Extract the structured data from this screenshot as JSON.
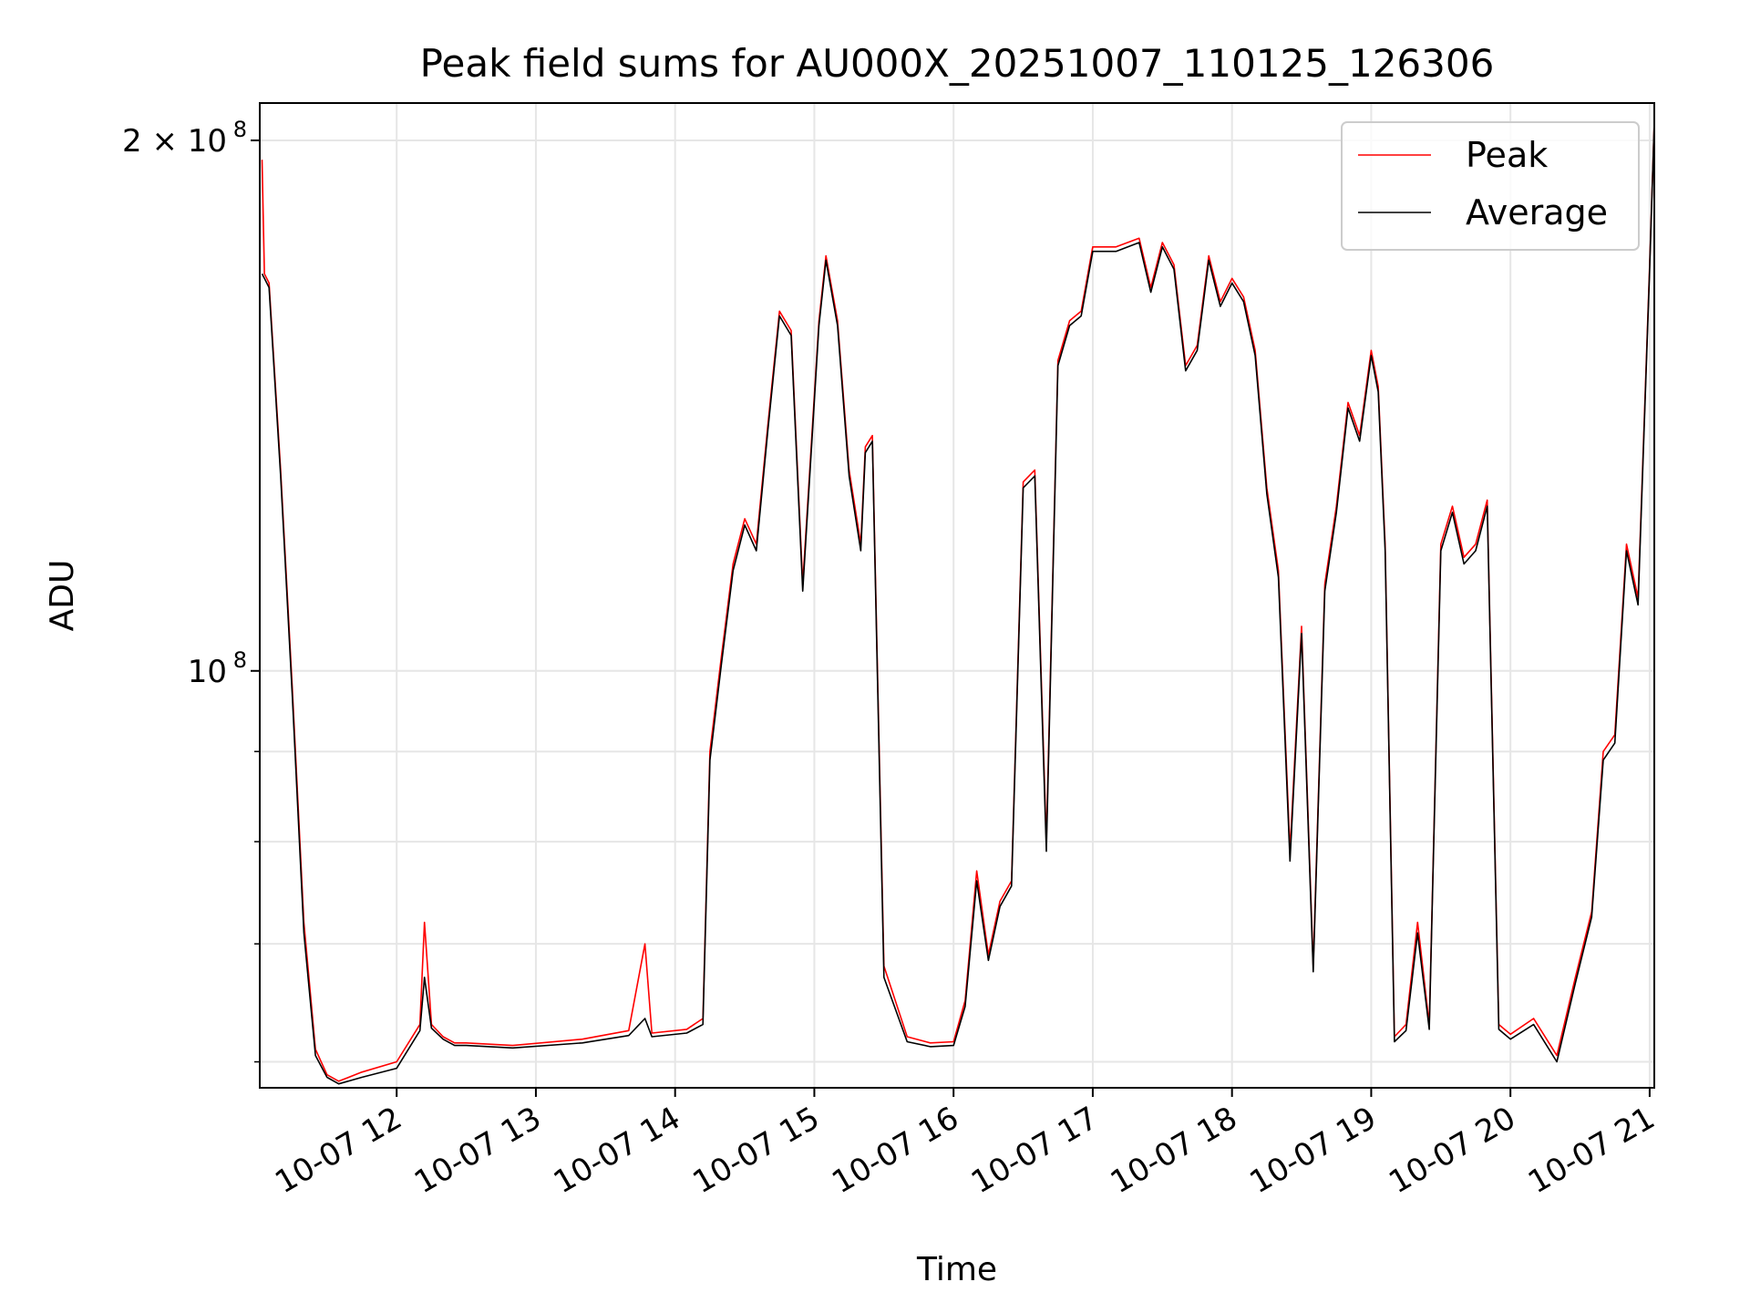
{
  "chart_data": {
    "type": "line",
    "title": "Peak field sums for AU000X_20251007_110125_126306",
    "xlabel": "Time",
    "ylabel": "ADU",
    "yscale": "log",
    "ylim": [
      58000000,
      210000000
    ],
    "xlim": [
      "2025-10-07 11:01",
      "2025-10-07 21:02"
    ],
    "x_ticks": [
      "10-07 12",
      "10-07 13",
      "10-07 14",
      "10-07 15",
      "10-07 16",
      "10-07 17",
      "10-07 18",
      "10-07 19",
      "10-07 20",
      "10-07 21"
    ],
    "y_ticks": [
      {
        "value": 200000000,
        "label": "2 × 10",
        "exp": "8"
      },
      {
        "value": 100000000,
        "label": "10",
        "exp": "8"
      }
    ],
    "y_minor_ticks": [
      60000000,
      70000000,
      80000000,
      90000000
    ],
    "grid": true,
    "legend_position": "top-right",
    "series": [
      {
        "name": "Peak",
        "color": "#ff0000",
        "x": [
          "2025-10-07 11:02",
          "2025-10-07 11:03",
          "2025-10-07 11:05",
          "2025-10-07 11:10",
          "2025-10-07 11:15",
          "2025-10-07 11:20",
          "2025-10-07 11:25",
          "2025-10-07 11:30",
          "2025-10-07 11:35",
          "2025-10-07 11:45",
          "2025-10-07 12:00",
          "2025-10-07 12:10",
          "2025-10-07 12:12",
          "2025-10-07 12:15",
          "2025-10-07 12:20",
          "2025-10-07 12:25",
          "2025-10-07 12:30",
          "2025-10-07 12:50",
          "2025-10-07 13:20",
          "2025-10-07 13:40",
          "2025-10-07 13:47",
          "2025-10-07 13:50",
          "2025-10-07 14:05",
          "2025-10-07 14:12",
          "2025-10-07 14:15",
          "2025-10-07 14:20",
          "2025-10-07 14:25",
          "2025-10-07 14:30",
          "2025-10-07 14:35",
          "2025-10-07 14:40",
          "2025-10-07 14:45",
          "2025-10-07 14:50",
          "2025-10-07 14:55",
          "2025-10-07 15:02",
          "2025-10-07 15:05",
          "2025-10-07 15:10",
          "2025-10-07 15:15",
          "2025-10-07 15:20",
          "2025-10-07 15:22",
          "2025-10-07 15:25",
          "2025-10-07 15:30",
          "2025-10-07 15:40",
          "2025-10-07 15:50",
          "2025-10-07 16:00",
          "2025-10-07 16:05",
          "2025-10-07 16:10",
          "2025-10-07 16:15",
          "2025-10-07 16:20",
          "2025-10-07 16:25",
          "2025-10-07 16:30",
          "2025-10-07 16:35",
          "2025-10-07 16:40",
          "2025-10-07 16:45",
          "2025-10-07 16:50",
          "2025-10-07 16:55",
          "2025-10-07 17:00",
          "2025-10-07 17:10",
          "2025-10-07 17:20",
          "2025-10-07 17:25",
          "2025-10-07 17:30",
          "2025-10-07 17:35",
          "2025-10-07 17:40",
          "2025-10-07 17:45",
          "2025-10-07 17:50",
          "2025-10-07 17:55",
          "2025-10-07 18:00",
          "2025-10-07 18:05",
          "2025-10-07 18:10",
          "2025-10-07 18:15",
          "2025-10-07 18:20",
          "2025-10-07 18:25",
          "2025-10-07 18:30",
          "2025-10-07 18:35",
          "2025-10-07 18:40",
          "2025-10-07 18:45",
          "2025-10-07 18:50",
          "2025-10-07 18:55",
          "2025-10-07 19:00",
          "2025-10-07 19:03",
          "2025-10-07 19:06",
          "2025-10-07 19:10",
          "2025-10-07 19:15",
          "2025-10-07 19:20",
          "2025-10-07 19:25",
          "2025-10-07 19:30",
          "2025-10-07 19:35",
          "2025-10-07 19:40",
          "2025-10-07 19:45",
          "2025-10-07 19:50",
          "2025-10-07 19:55",
          "2025-10-07 20:00",
          "2025-10-07 20:10",
          "2025-10-07 20:20",
          "2025-10-07 20:28",
          "2025-10-07 20:35",
          "2025-10-07 20:40",
          "2025-10-07 20:45",
          "2025-10-07 20:50",
          "2025-10-07 20:55",
          "2025-10-07 21:00",
          "2025-10-07 21:02"
        ],
        "values": [
          195000000,
          168000000,
          166000000,
          130000000,
          98000000,
          72000000,
          61000000,
          59000000,
          58500000,
          59200000,
          60000000,
          63000000,
          72000000,
          63000000,
          62000000,
          61500000,
          61500000,
          61300000,
          61800000,
          62500000,
          70000000,
          62300000,
          62600000,
          63500000,
          90000000,
          102000000,
          115000000,
          122000000,
          118000000,
          138000000,
          160000000,
          156000000,
          112000000,
          158000000,
          172000000,
          158000000,
          130000000,
          118000000,
          134000000,
          136000000,
          68000000,
          62000000,
          61500000,
          61600000,
          65000000,
          77000000,
          69000000,
          74000000,
          76000000,
          128000000,
          130000000,
          80000000,
          150000000,
          158000000,
          160000000,
          174000000,
          174000000,
          176000000,
          165000000,
          175000000,
          170000000,
          149000000,
          153000000,
          172000000,
          162000000,
          167000000,
          163000000,
          152000000,
          127000000,
          114000000,
          79000000,
          106000000,
          68000000,
          112000000,
          124000000,
          142000000,
          136000000,
          152000000,
          145000000,
          118000000,
          62000000,
          63000000,
          72000000,
          63000000,
          118000000,
          124000000,
          116000000,
          118000000,
          125000000,
          63000000,
          62200000,
          63500000,
          60500000,
          67000000,
          73000000,
          90000000,
          92000000,
          118000000,
          110000000,
          170000000,
          205000000
        ]
      },
      {
        "name": "Average",
        "color": "#000000",
        "x": [
          "2025-10-07 11:02",
          "2025-10-07 11:03",
          "2025-10-07 11:05",
          "2025-10-07 11:10",
          "2025-10-07 11:15",
          "2025-10-07 11:20",
          "2025-10-07 11:25",
          "2025-10-07 11:30",
          "2025-10-07 11:35",
          "2025-10-07 11:45",
          "2025-10-07 12:00",
          "2025-10-07 12:10",
          "2025-10-07 12:12",
          "2025-10-07 12:15",
          "2025-10-07 12:20",
          "2025-10-07 12:25",
          "2025-10-07 12:30",
          "2025-10-07 12:50",
          "2025-10-07 13:20",
          "2025-10-07 13:40",
          "2025-10-07 13:47",
          "2025-10-07 13:50",
          "2025-10-07 14:05",
          "2025-10-07 14:12",
          "2025-10-07 14:15",
          "2025-10-07 14:20",
          "2025-10-07 14:25",
          "2025-10-07 14:30",
          "2025-10-07 14:35",
          "2025-10-07 14:40",
          "2025-10-07 14:45",
          "2025-10-07 14:50",
          "2025-10-07 14:55",
          "2025-10-07 15:02",
          "2025-10-07 15:05",
          "2025-10-07 15:10",
          "2025-10-07 15:15",
          "2025-10-07 15:20",
          "2025-10-07 15:22",
          "2025-10-07 15:25",
          "2025-10-07 15:30",
          "2025-10-07 15:40",
          "2025-10-07 15:50",
          "2025-10-07 16:00",
          "2025-10-07 16:05",
          "2025-10-07 16:10",
          "2025-10-07 16:15",
          "2025-10-07 16:20",
          "2025-10-07 16:25",
          "2025-10-07 16:30",
          "2025-10-07 16:35",
          "2025-10-07 16:40",
          "2025-10-07 16:45",
          "2025-10-07 16:50",
          "2025-10-07 16:55",
          "2025-10-07 17:00",
          "2025-10-07 17:10",
          "2025-10-07 17:20",
          "2025-10-07 17:25",
          "2025-10-07 17:30",
          "2025-10-07 17:35",
          "2025-10-07 17:40",
          "2025-10-07 17:45",
          "2025-10-07 17:50",
          "2025-10-07 17:55",
          "2025-10-07 18:00",
          "2025-10-07 18:05",
          "2025-10-07 18:10",
          "2025-10-07 18:15",
          "2025-10-07 18:20",
          "2025-10-07 18:25",
          "2025-10-07 18:30",
          "2025-10-07 18:35",
          "2025-10-07 18:40",
          "2025-10-07 18:45",
          "2025-10-07 18:50",
          "2025-10-07 18:55",
          "2025-10-07 19:00",
          "2025-10-07 19:03",
          "2025-10-07 19:06",
          "2025-10-07 19:10",
          "2025-10-07 19:15",
          "2025-10-07 19:20",
          "2025-10-07 19:25",
          "2025-10-07 19:30",
          "2025-10-07 19:35",
          "2025-10-07 19:40",
          "2025-10-07 19:45",
          "2025-10-07 19:50",
          "2025-10-07 19:55",
          "2025-10-07 20:00",
          "2025-10-07 20:10",
          "2025-10-07 20:20",
          "2025-10-07 20:28",
          "2025-10-07 20:35",
          "2025-10-07 20:40",
          "2025-10-07 20:45",
          "2025-10-07 20:50",
          "2025-10-07 20:55",
          "2025-10-07 21:00",
          "2025-10-07 21:02"
        ],
        "values": [
          168000000,
          167000000,
          165000000,
          129000000,
          97000000,
          71000000,
          60500000,
          58800000,
          58300000,
          58800000,
          59500000,
          62500000,
          67000000,
          62700000,
          61800000,
          61300000,
          61300000,
          61100000,
          61500000,
          62100000,
          63500000,
          62000000,
          62300000,
          63000000,
          89000000,
          101000000,
          114000000,
          121000000,
          117000000,
          137000000,
          159000000,
          155000000,
          111000000,
          157000000,
          171000000,
          157000000,
          129000000,
          117000000,
          133000000,
          135000000,
          67000000,
          61600000,
          61200000,
          61300000,
          64500000,
          76000000,
          68500000,
          73500000,
          75500000,
          127000000,
          129000000,
          79000000,
          149000000,
          157000000,
          159000000,
          173000000,
          173000000,
          175000000,
          164000000,
          174000000,
          169000000,
          148000000,
          152000000,
          171000000,
          161000000,
          166000000,
          162000000,
          151000000,
          126000000,
          113000000,
          78000000,
          105000000,
          67500000,
          111000000,
          123000000,
          141000000,
          135000000,
          151000000,
          144000000,
          117000000,
          61600000,
          62500000,
          71000000,
          62600000,
          117000000,
          123000000,
          115000000,
          117000000,
          124000000,
          62600000,
          61800000,
          63000000,
          60000000,
          66500000,
          72500000,
          89000000,
          91000000,
          117000000,
          109000000,
          169000000,
          205000000
        ]
      }
    ],
    "legend": [
      {
        "name": "Peak",
        "color": "#ff0000"
      },
      {
        "name": "Average",
        "color": "#000000"
      }
    ]
  }
}
